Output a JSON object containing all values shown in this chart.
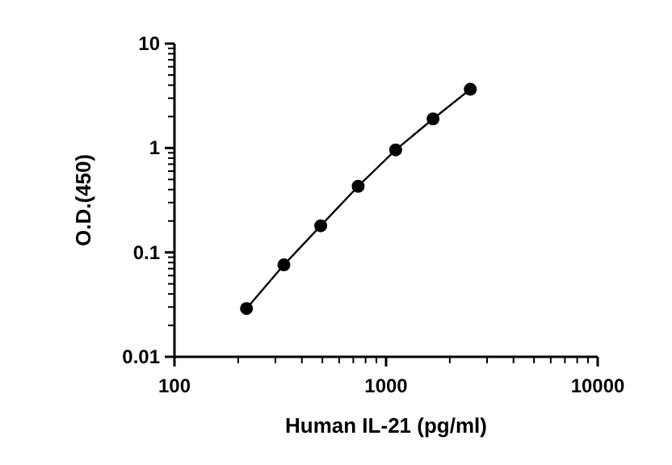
{
  "chart_data": {
    "type": "line",
    "xlabel": "Human IL-21 (pg/ml)",
    "ylabel": "O.D.(450)",
    "log": "xy",
    "x": [
      219,
      329,
      491,
      738,
      1110,
      1667,
      2500
    ],
    "values": [
      0.029,
      0.076,
      0.18,
      0.43,
      0.96,
      1.9,
      3.65
    ],
    "color": "#000000",
    "marker": "circle",
    "line_style": "solid",
    "grid": false,
    "xlim": [
      100,
      10000
    ],
    "xticks": [
      100,
      1000,
      10000
    ],
    "ylim": [
      0.01,
      10
    ],
    "yticks": [
      0.01,
      0.1,
      1,
      10
    ]
  }
}
